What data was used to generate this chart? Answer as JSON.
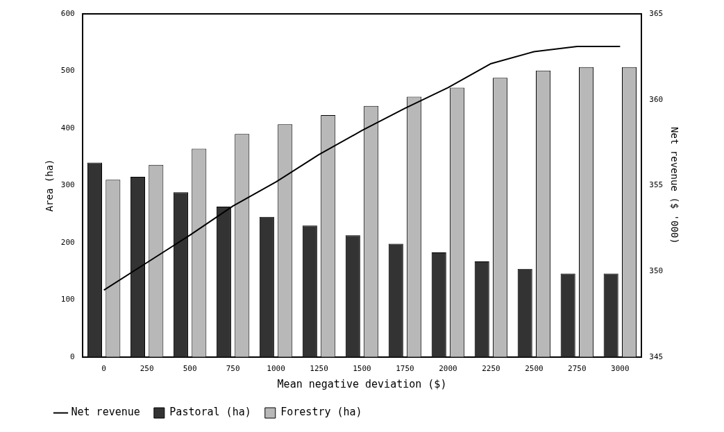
{
  "chart_data": {
    "type": "bar",
    "xlabel": "Mean negative deviation ($)",
    "ylabel": "Area (ha)",
    "y2label": "Net revenue ($ '000)",
    "categories": [
      "0",
      "250",
      "500",
      "750",
      "1000",
      "1250",
      "1500",
      "1750",
      "2000",
      "2250",
      "2500",
      "2750",
      "3000"
    ],
    "series": [
      {
        "name": "Pastoral (ha)",
        "color": "#333333",
        "values": [
          340,
          315,
          288,
          263,
          245,
          230,
          213,
          198,
          183,
          167,
          154,
          146,
          146
        ]
      },
      {
        "name": "Forestry (ha)",
        "color": "#b8b8b8",
        "values": [
          310,
          336,
          364,
          390,
          407,
          423,
          439,
          455,
          471,
          488,
          501,
          507,
          507
        ]
      },
      {
        "name": "Net revenue",
        "type": "line",
        "axis": "y2",
        "color": "#000000",
        "values": [
          348.9,
          350.5,
          352.1,
          353.8,
          355.2,
          356.8,
          358.2,
          359.5,
          360.7,
          362.1,
          362.8,
          363.1,
          363.1
        ]
      }
    ],
    "ylim": [
      0,
      600
    ],
    "yticks": [
      0,
      100,
      200,
      300,
      400,
      500,
      600
    ],
    "y2lim": [
      345,
      365
    ],
    "y2ticks": [
      345,
      350,
      355,
      360,
      365
    ],
    "grid": false,
    "legend": "bottom",
    "marker": "none",
    "line_style": "solid"
  }
}
